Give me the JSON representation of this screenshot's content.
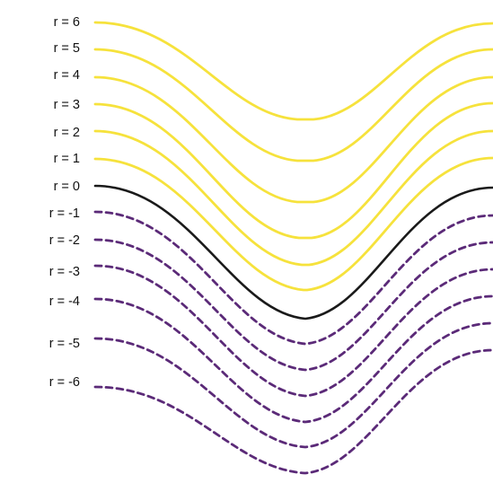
{
  "diagram": {
    "colors": {
      "positive": "#F6E23C",
      "zero": "#1A1A1A",
      "negative": "#5B2A78",
      "background": "#FFFFFF"
    },
    "curves": [
      {
        "r": 6,
        "label": "r = 6",
        "style": "solid"
      },
      {
        "r": 5,
        "label": "r = 5",
        "style": "solid"
      },
      {
        "r": 4,
        "label": "r = 4",
        "style": "solid"
      },
      {
        "r": 3,
        "label": "r = 3",
        "style": "solid"
      },
      {
        "r": 2,
        "label": "r = 2",
        "style": "solid"
      },
      {
        "r": 1,
        "label": "r = 1",
        "style": "solid"
      },
      {
        "r": 0,
        "label": "r = 0",
        "style": "solid"
      },
      {
        "r": -1,
        "label": "r = -1",
        "style": "dashed"
      },
      {
        "r": -2,
        "label": "r = -2",
        "style": "dashed"
      },
      {
        "r": -3,
        "label": "r = -3",
        "style": "dashed"
      },
      {
        "r": -4,
        "label": "r = -4",
        "style": "dashed"
      },
      {
        "r": -5,
        "label": "r = -5",
        "style": "dashed"
      },
      {
        "r": -6,
        "label": "r = -6",
        "style": "dashed"
      }
    ]
  }
}
